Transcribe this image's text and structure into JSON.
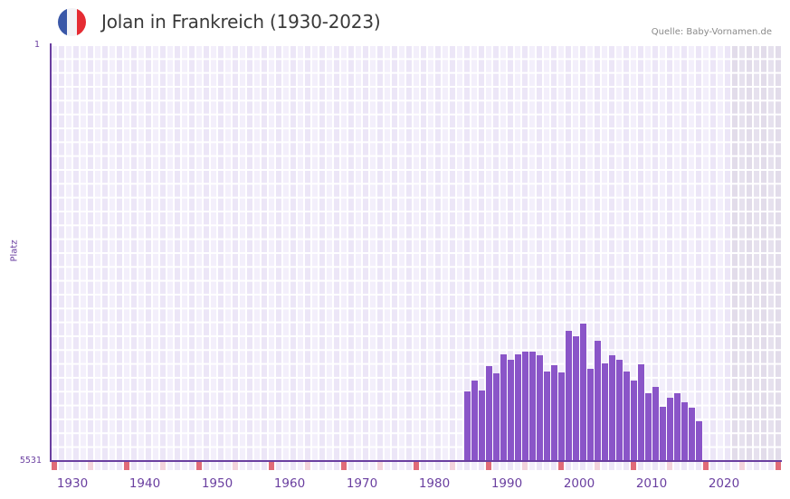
{
  "header": {
    "title": "Jolan in Frankreich (1930-2023)",
    "source": "Quelle: Baby-Vornamen.de",
    "flag_colors": [
      "#3a57a7",
      "#f3f3f6",
      "#e52c33"
    ]
  },
  "colors": {
    "bar": "#8a55c8",
    "axis": "#6a3fa0",
    "grid_bg_a": "#f3effb",
    "grid_bg_b": "#ece6f7",
    "future_shade": "#e2dcea",
    "decade_marker": "#e06b78",
    "half_decade_marker": "#f3d3dc"
  },
  "chart_data": {
    "type": "bar",
    "title": "Jolan in Frankreich (1930-2023)",
    "xlabel": "",
    "ylabel": "Platz",
    "y_inverted": true,
    "ylim": [
      5531,
      1
    ],
    "y_ticks": [
      "1",
      "5531"
    ],
    "x_ticks": [
      "1930",
      "1940",
      "1950",
      "1960",
      "1970",
      "1980",
      "1990",
      "2000",
      "2010",
      "2020"
    ],
    "x_range": [
      1928,
      2028
    ],
    "grid": true,
    "categories": [
      1985,
      1986,
      1987,
      1988,
      1989,
      1990,
      1991,
      1992,
      1993,
      1994,
      1995,
      1996,
      1997,
      1998,
      1999,
      2000,
      2001,
      2002,
      2003,
      2004,
      2005,
      2006,
      2007,
      2008,
      2009,
      2010,
      2011,
      2012,
      2013,
      2014,
      2015,
      2016,
      2017
    ],
    "series": [
      {
        "name": "Platz (rank)",
        "values": [
          4607,
          4463,
          4595,
          4270,
          4366,
          4113,
          4185,
          4113,
          4077,
          4077,
          4125,
          4341,
          4257,
          4353,
          3800,
          3872,
          3704,
          4306,
          3933,
          4233,
          4125,
          4185,
          4341,
          4463,
          4246,
          4631,
          4547,
          4811,
          4691,
          4631,
          4751,
          4823,
          5004
        ]
      }
    ]
  }
}
